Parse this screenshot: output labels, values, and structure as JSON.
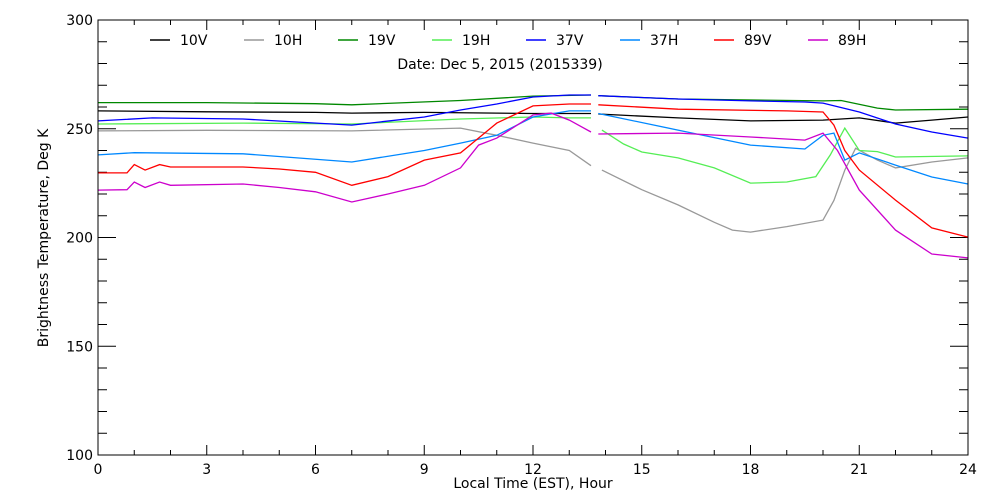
{
  "chart_data": {
    "type": "line",
    "subtitle": "Date: Dec  5, 2015 (2015339)",
    "xlabel": "Local Time (EST), Hour",
    "ylabel": "Brightness Temperature, Deg  K",
    "xlim": [
      0,
      24
    ],
    "ylim": [
      100,
      300
    ],
    "xticks": [
      "0",
      "3",
      "6",
      "9",
      "12",
      "15",
      "18",
      "21",
      "24"
    ],
    "yticks": [
      "100",
      "150",
      "200",
      "250",
      "300"
    ],
    "legend_position": "top",
    "grid": false,
    "series": [
      {
        "name": "10V",
        "color": "#000000",
        "points": [
          [
            0,
            258.2
          ],
          [
            3,
            257.8
          ],
          [
            6,
            257.5
          ],
          [
            7,
            257.2
          ],
          [
            9,
            257.5
          ],
          [
            12,
            257
          ],
          [
            13.6,
            257
          ],
          [
            13.75,
            null
          ],
          [
            13.8,
            256.8
          ],
          [
            16,
            255
          ],
          [
            18,
            253.6
          ],
          [
            20,
            254
          ],
          [
            21,
            255
          ],
          [
            22,
            252.6
          ],
          [
            23,
            254
          ],
          [
            24,
            255.4
          ]
        ]
      },
      {
        "name": "10H",
        "color": "#999999",
        "points": [
          [
            0,
            249
          ],
          [
            3,
            249.3
          ],
          [
            7,
            249
          ],
          [
            10,
            250.3
          ],
          [
            11,
            247
          ],
          [
            12,
            243.4
          ],
          [
            13,
            240
          ],
          [
            13.6,
            233
          ],
          [
            13.75,
            null
          ],
          [
            13.9,
            231
          ],
          [
            15,
            222
          ],
          [
            16,
            215
          ],
          [
            17,
            207
          ],
          [
            17.5,
            203.4
          ],
          [
            18,
            202.5
          ],
          [
            19,
            205
          ],
          [
            20,
            208
          ],
          [
            20.3,
            217
          ],
          [
            20.6,
            231
          ],
          [
            20.9,
            241
          ],
          [
            21.5,
            235.6
          ],
          [
            22,
            232
          ],
          [
            23,
            234.7
          ],
          [
            24,
            236.6
          ]
        ]
      },
      {
        "name": "19V",
        "color": "#008800",
        "points": [
          [
            0,
            262
          ],
          [
            3,
            262
          ],
          [
            6,
            261.5
          ],
          [
            7,
            261
          ],
          [
            10,
            263
          ],
          [
            12,
            265
          ],
          [
            13.6,
            265.5
          ],
          [
            13.75,
            null
          ],
          [
            13.8,
            265.2
          ],
          [
            16,
            263.7
          ],
          [
            20,
            262.8
          ],
          [
            20.5,
            263
          ],
          [
            21.5,
            259.5
          ],
          [
            22,
            258.6
          ],
          [
            24,
            259
          ]
        ]
      },
      {
        "name": "19H",
        "color": "#55ee55",
        "points": [
          [
            0,
            252.2
          ],
          [
            4,
            252.6
          ],
          [
            7,
            252.2
          ],
          [
            10,
            254.5
          ],
          [
            12,
            255.4
          ],
          [
            13,
            255
          ],
          [
            13.6,
            255
          ],
          [
            13.75,
            null
          ],
          [
            13.9,
            249.4
          ],
          [
            14.5,
            243
          ],
          [
            15,
            239.3
          ],
          [
            16,
            236.6
          ],
          [
            17,
            232
          ],
          [
            18,
            225
          ],
          [
            19,
            225.5
          ],
          [
            19.8,
            228
          ],
          [
            20.2,
            238
          ],
          [
            20.6,
            250.3
          ],
          [
            21,
            240
          ],
          [
            21.5,
            239.5
          ],
          [
            22,
            237
          ],
          [
            24,
            237.5
          ]
        ]
      },
      {
        "name": "37V",
        "color": "#0000ff",
        "points": [
          [
            0,
            253.6
          ],
          [
            1.5,
            255
          ],
          [
            4,
            254.5
          ],
          [
            7,
            251.7
          ],
          [
            9,
            255.4
          ],
          [
            10,
            258.6
          ],
          [
            11,
            261.4
          ],
          [
            12,
            264.6
          ],
          [
            13,
            265.5
          ],
          [
            13.6,
            265.5
          ],
          [
            13.75,
            null
          ],
          [
            13.8,
            265.2
          ],
          [
            16,
            263.7
          ],
          [
            18,
            262.8
          ],
          [
            19.5,
            262.3
          ],
          [
            20,
            261.8
          ],
          [
            21,
            257.7
          ],
          [
            22,
            252.2
          ],
          [
            23,
            248.5
          ],
          [
            24,
            245.7
          ]
        ]
      },
      {
        "name": "37H",
        "color": "#0088ff",
        "points": [
          [
            0,
            238
          ],
          [
            1,
            239
          ],
          [
            4,
            238.5
          ],
          [
            7,
            234.7
          ],
          [
            9,
            240
          ],
          [
            10,
            243.4
          ],
          [
            11,
            247
          ],
          [
            12,
            255.4
          ],
          [
            13,
            258.2
          ],
          [
            13.6,
            258.2
          ],
          [
            13.75,
            null
          ],
          [
            13.8,
            257
          ],
          [
            16,
            249.4
          ],
          [
            18,
            242.5
          ],
          [
            19.5,
            240.7
          ],
          [
            20,
            247
          ],
          [
            20.3,
            248
          ],
          [
            20.6,
            235.6
          ],
          [
            21,
            238.9
          ],
          [
            22,
            233.3
          ],
          [
            23,
            227.8
          ],
          [
            24,
            224.6
          ]
        ]
      },
      {
        "name": "89V",
        "color": "#ff0000",
        "points": [
          [
            0,
            229.7
          ],
          [
            0.8,
            229.7
          ],
          [
            1,
            233.5
          ],
          [
            1.3,
            231
          ],
          [
            1.7,
            233.5
          ],
          [
            2,
            232.4
          ],
          [
            4,
            232.4
          ],
          [
            5,
            231.5
          ],
          [
            6,
            230
          ],
          [
            7,
            224
          ],
          [
            8,
            228
          ],
          [
            9,
            235.6
          ],
          [
            10,
            238.9
          ],
          [
            11,
            252.6
          ],
          [
            12,
            260.5
          ],
          [
            13,
            261.4
          ],
          [
            13.6,
            261.4
          ],
          [
            13.75,
            null
          ],
          [
            13.8,
            261
          ],
          [
            16,
            259
          ],
          [
            19,
            258.2
          ],
          [
            20,
            257.7
          ],
          [
            20.3,
            251.7
          ],
          [
            20.6,
            240
          ],
          [
            21,
            231
          ],
          [
            22,
            217.2
          ],
          [
            23,
            204.4
          ],
          [
            24,
            200.2
          ]
        ]
      },
      {
        "name": "89H",
        "color": "#cc00cc",
        "points": [
          [
            0,
            221.8
          ],
          [
            0.8,
            222
          ],
          [
            1,
            225.5
          ],
          [
            1.3,
            223
          ],
          [
            1.7,
            225.5
          ],
          [
            2,
            224
          ],
          [
            4,
            224.6
          ],
          [
            5,
            223
          ],
          [
            6,
            221
          ],
          [
            7,
            216.3
          ],
          [
            8,
            220
          ],
          [
            9,
            224
          ],
          [
            10,
            232
          ],
          [
            10.5,
            242.5
          ],
          [
            11,
            245.7
          ],
          [
            12,
            256.3
          ],
          [
            12.5,
            257.2
          ],
          [
            13,
            254
          ],
          [
            13.6,
            248.5
          ],
          [
            13.75,
            null
          ],
          [
            13.8,
            247.6
          ],
          [
            16,
            248
          ],
          [
            18,
            246.2
          ],
          [
            19.5,
            244.8
          ],
          [
            20,
            248
          ],
          [
            20.4,
            240
          ],
          [
            21,
            221.8
          ],
          [
            22,
            203.4
          ],
          [
            23,
            192.4
          ],
          [
            24,
            190.6
          ]
        ]
      }
    ]
  }
}
